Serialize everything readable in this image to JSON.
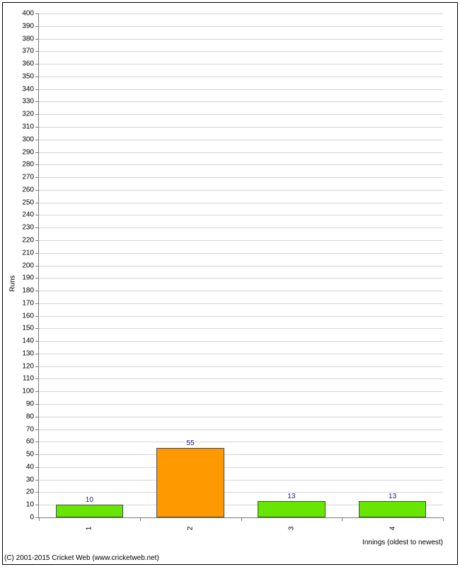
{
  "chart": {
    "type": "bar",
    "y_axis_title": "Runs",
    "x_axis_title": "Innings (oldest to newest)",
    "ylim": [
      0,
      400
    ],
    "ytick_step": 10,
    "background_color": "#ffffff",
    "grid_color": "#d6d6d6",
    "axis_color": "#7a7a7a",
    "bar_border_color": "#4a4a4a",
    "value_label_color": "#20207a",
    "label_fontsize": 10,
    "categories": [
      "1",
      "2",
      "3",
      "4"
    ],
    "values": [
      10,
      55,
      13,
      13
    ],
    "bar_colors": [
      "#66e600",
      "#ff9900",
      "#66e600",
      "#66e600"
    ],
    "bar_width": 0.67
  },
  "copyright": "(C) 2001-2015 Cricket Web (www.cricketweb.net)"
}
